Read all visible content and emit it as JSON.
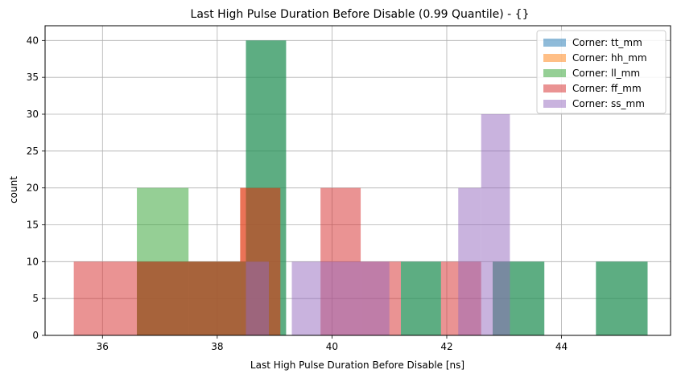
{
  "chart_data": {
    "type": "bar",
    "subtype": "histogram",
    "title": "Last High Pulse Duration Before Disable (0.99 Quantile) - {}",
    "xlabel": "Last High Pulse Duration Before Disable [ns]",
    "ylabel": "count",
    "xlim": [
      35.0,
      45.9
    ],
    "ylim": [
      0,
      42
    ],
    "xticks": [
      36,
      38,
      40,
      42,
      44
    ],
    "yticks": [
      0,
      5,
      10,
      15,
      20,
      25,
      30,
      35,
      40
    ],
    "grid": true,
    "legend_position": "top-right",
    "bar_alpha": 0.5,
    "series": [
      {
        "name": "Corner: tt_mm",
        "color": "#1f77b4",
        "bins": [
          [
            36.6,
            37.5,
            10
          ],
          [
            37.5,
            38.5,
            10
          ],
          [
            38.5,
            39.2,
            40
          ],
          [
            41.2,
            41.9,
            10
          ],
          [
            41.9,
            42.8,
            0
          ],
          [
            42.8,
            43.7,
            10
          ],
          [
            44.6,
            45.5,
            10
          ]
        ]
      },
      {
        "name": "Corner: hh_mm",
        "color": "#ff7f0e",
        "bins": [
          [
            36.6,
            38.4,
            10
          ],
          [
            38.4,
            39.1,
            20
          ]
        ]
      },
      {
        "name": "Corner: ll_mm",
        "color": "#2ca02c",
        "bins": [
          [
            36.6,
            37.5,
            20
          ],
          [
            37.5,
            38.5,
            10
          ],
          [
            38.5,
            39.2,
            40
          ],
          [
            41.2,
            41.9,
            10
          ],
          [
            42.8,
            43.7,
            10
          ],
          [
            44.6,
            45.5,
            10
          ]
        ]
      },
      {
        "name": "Corner: ff_mm",
        "color": "#d62728",
        "bins": [
          [
            35.5,
            36.6,
            10
          ],
          [
            36.6,
            38.4,
            10
          ],
          [
            38.4,
            39.1,
            20
          ],
          [
            39.8,
            40.5,
            20
          ],
          [
            40.5,
            41.2,
            10
          ],
          [
            41.9,
            42.6,
            10
          ]
        ]
      },
      {
        "name": "Corner: ss_mm",
        "color": "#9467bd",
        "bins": [
          [
            38.5,
            38.9,
            10
          ],
          [
            39.3,
            39.8,
            10
          ],
          [
            39.8,
            41.0,
            10
          ],
          [
            42.2,
            42.6,
            20
          ],
          [
            42.6,
            43.1,
            30
          ]
        ]
      }
    ]
  }
}
